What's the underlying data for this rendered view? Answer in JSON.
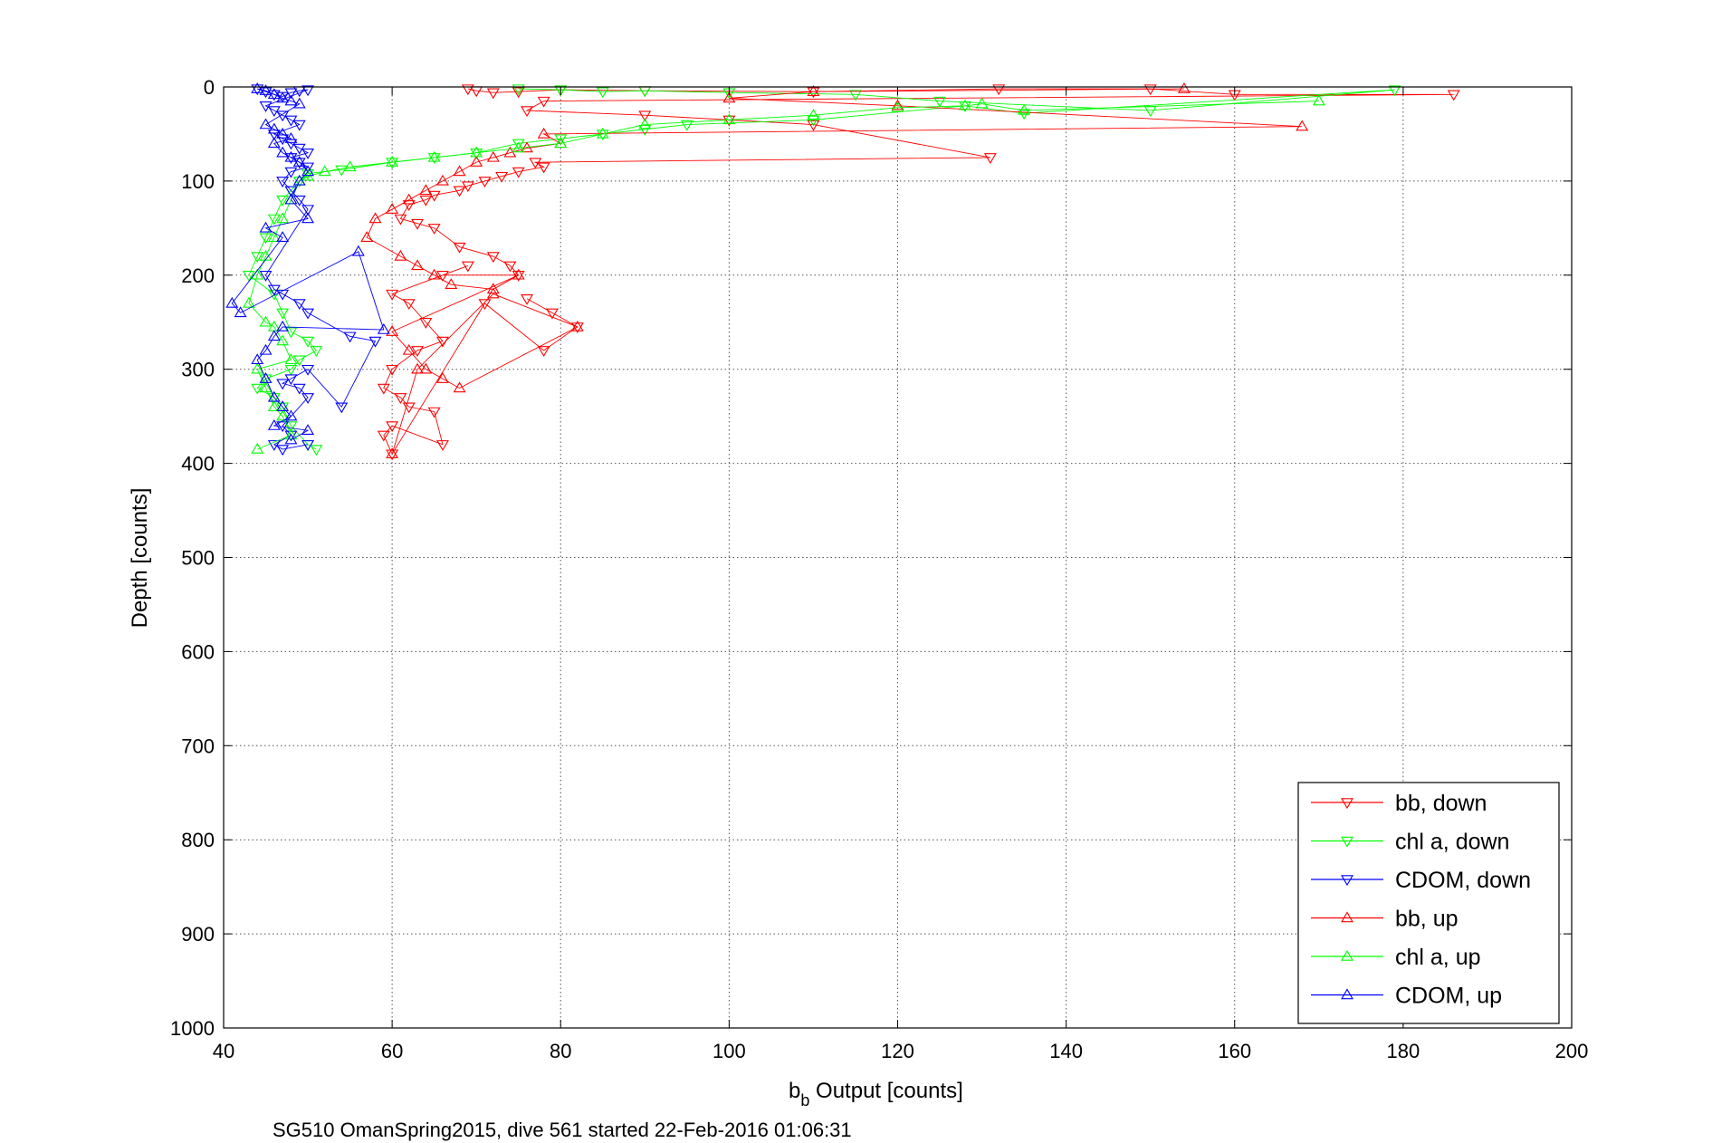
{
  "chart_data": {
    "type": "scatter",
    "title": "",
    "xlabel_main": "b",
    "xlabel_sub": "b",
    "xlabel_rest": " Output [counts]",
    "ylabel": "Depth [counts]",
    "xlim": [
      40,
      200
    ],
    "ylim": [
      0,
      1000
    ],
    "y_reversed": true,
    "xticks": [
      "40",
      "60",
      "80",
      "100",
      "120",
      "140",
      "160",
      "180",
      "200"
    ],
    "yticks": [
      "0",
      "100",
      "200",
      "300",
      "400",
      "500",
      "600",
      "700",
      "800",
      "900",
      "1000"
    ],
    "grid": true,
    "legend_position": "bottom-right",
    "caption": "SG510 OmanSpring2015, dive 561 started 22-Feb-2016 01:06:31",
    "series": [
      {
        "name": "bb, down",
        "color": "#ff0000",
        "marker": "triangle-down",
        "x": [
          69,
          70,
          72,
          75,
          80,
          90,
          110,
          132,
          150,
          160,
          186,
          78,
          76,
          90,
          100,
          110,
          131,
          77,
          78,
          75,
          73,
          71,
          69,
          68,
          65,
          64,
          62,
          61,
          63,
          65,
          68,
          72,
          74,
          75,
          66,
          69,
          60,
          62,
          64,
          66,
          63,
          60,
          59,
          61,
          62,
          65,
          66,
          60,
          59,
          60,
          71,
          78,
          82,
          76,
          79
        ],
        "y": [
          2,
          4,
          6,
          5,
          3,
          4,
          5,
          2,
          2,
          8,
          8,
          15,
          25,
          30,
          35,
          40,
          75,
          80,
          85,
          90,
          95,
          100,
          105,
          110,
          115,
          120,
          125,
          140,
          145,
          150,
          170,
          180,
          190,
          200,
          200,
          190,
          220,
          230,
          250,
          270,
          280,
          300,
          320,
          330,
          340,
          345,
          380,
          360,
          370,
          390,
          230,
          280,
          255,
          225,
          240
        ]
      },
      {
        "name": "chl a, down",
        "color": "#00ff00",
        "marker": "triangle-down",
        "x": [
          75,
          80,
          85,
          90,
          100,
          115,
          125,
          150,
          179,
          135,
          128,
          110,
          95,
          90,
          85,
          80,
          75,
          70,
          65,
          60,
          54,
          50,
          49,
          48,
          47,
          46,
          45,
          44,
          43,
          46,
          47,
          48,
          50,
          51,
          49,
          48,
          45,
          44,
          46,
          47,
          48,
          50,
          51
        ],
        "y": [
          2,
          3,
          5,
          4,
          6,
          8,
          15,
          25,
          3,
          28,
          20,
          35,
          40,
          45,
          50,
          55,
          60,
          70,
          75,
          80,
          88,
          92,
          100,
          110,
          120,
          140,
          160,
          180,
          200,
          220,
          240,
          260,
          270,
          280,
          290,
          300,
          310,
          320,
          330,
          340,
          360,
          380,
          385
        ]
      },
      {
        "name": "CDOM, down",
        "color": "#0000ff",
        "marker": "triangle-down",
        "x": [
          44,
          45,
          46,
          47,
          48,
          49,
          50,
          45,
          46,
          47,
          48,
          49,
          46,
          47,
          48,
          49,
          50,
          48,
          49,
          50,
          48,
          47,
          48,
          49,
          50,
          45,
          46,
          47,
          49,
          50,
          55,
          58,
          54,
          50,
          48,
          47,
          49,
          50,
          47,
          48,
          46,
          47,
          50
        ],
        "y": [
          2,
          5,
          8,
          10,
          6,
          4,
          3,
          20,
          25,
          30,
          35,
          40,
          50,
          55,
          60,
          65,
          70,
          75,
          80,
          85,
          90,
          100,
          110,
          120,
          130,
          200,
          215,
          220,
          230,
          240,
          265,
          270,
          340,
          300,
          310,
          315,
          320,
          330,
          360,
          370,
          380,
          385,
          380
        ]
      },
      {
        "name": "bb, up",
        "color": "#ff0000",
        "marker": "triangle-up",
        "x": [
          154,
          110,
          100,
          120,
          168,
          78,
          80,
          76,
          74,
          72,
          70,
          68,
          66,
          64,
          62,
          60,
          58,
          57,
          61,
          63,
          65,
          67,
          72,
          75,
          60,
          62,
          64,
          66,
          68,
          82,
          72,
          63,
          60
        ],
        "y": [
          2,
          5,
          12,
          20,
          42,
          50,
          60,
          65,
          70,
          75,
          80,
          90,
          100,
          110,
          120,
          130,
          140,
          160,
          180,
          190,
          200,
          210,
          215,
          200,
          260,
          280,
          300,
          310,
          320,
          255,
          220,
          300,
          390
        ]
      },
      {
        "name": "chl a, up",
        "color": "#00ff00",
        "marker": "triangle-up",
        "x": [
          170,
          135,
          130,
          128,
          120,
          110,
          100,
          90,
          85,
          80,
          75,
          70,
          65,
          60,
          55,
          52,
          50,
          49,
          48,
          47,
          46,
          45,
          44,
          43,
          45,
          46,
          47,
          48,
          44,
          45,
          46,
          47,
          48,
          44
        ],
        "y": [
          15,
          25,
          18,
          20,
          22,
          30,
          35,
          40,
          50,
          60,
          65,
          70,
          75,
          80,
          85,
          90,
          95,
          100,
          120,
          140,
          160,
          180,
          200,
          230,
          250,
          255,
          270,
          290,
          300,
          320,
          340,
          350,
          370,
          385
        ]
      },
      {
        "name": "CDOM, up",
        "color": "#0000ff",
        "marker": "triangle-up",
        "x": [
          44,
          45,
          46,
          47,
          48,
          49,
          45,
          46,
          47,
          48,
          46,
          47,
          48,
          49,
          50,
          49,
          48,
          50,
          45,
          47,
          41,
          42,
          56,
          59,
          47,
          46,
          45,
          44,
          45,
          46,
          47,
          48,
          46,
          50,
          48
        ],
        "y": [
          2,
          4,
          8,
          12,
          15,
          18,
          40,
          45,
          50,
          55,
          60,
          70,
          75,
          80,
          90,
          100,
          120,
          140,
          150,
          160,
          230,
          240,
          175,
          258,
          255,
          265,
          280,
          290,
          310,
          330,
          340,
          350,
          360,
          365,
          375
        ]
      }
    ]
  }
}
